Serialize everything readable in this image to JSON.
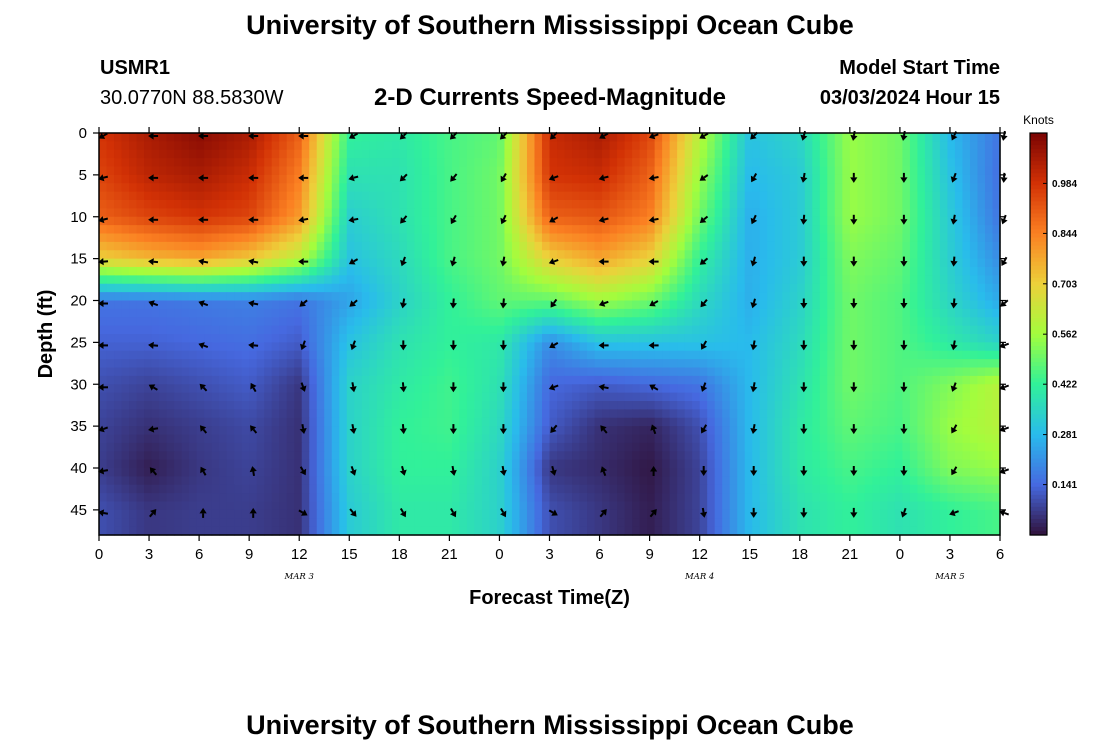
{
  "page": {
    "title": "University of Southern Mississippi Ocean Cube",
    "footer_title": "University of Southern Mississippi Ocean Cube",
    "station_id": "USMR1",
    "station_coords": "30.0770N  88.5830W",
    "plot_title": "2-D Currents Speed-Magnitude",
    "model_start_label": "Model Start Time",
    "model_start_value": "03/03/2024 Hour 15"
  },
  "chart_data": {
    "type": "heatmap",
    "title": "2-D Currents Speed-Magnitude",
    "xlabel": "Forecast Time(Z)",
    "ylabel": "Depth (ft)",
    "x_range_hours": [
      0,
      54
    ],
    "x_tick_labels": [
      "0",
      "3",
      "6",
      "9",
      "12",
      "15",
      "18",
      "21",
      "0",
      "3",
      "6",
      "9",
      "12",
      "15",
      "18",
      "21",
      "0",
      "3",
      "6"
    ],
    "date_labels": [
      {
        "label": "MAR 3",
        "hour": 12
      },
      {
        "label": "MAR 4",
        "hour": 36
      },
      {
        "label": "MAR 5",
        "hour": 51
      }
    ],
    "y_range_ft": [
      0,
      48
    ],
    "y_reversed": true,
    "y_ticks": [
      0,
      5,
      10,
      15,
      20,
      25,
      30,
      35,
      40,
      45
    ],
    "colorbar": {
      "title": "Knots",
      "ticks": [
        0.141,
        0.281,
        0.422,
        0.562,
        0.703,
        0.844,
        0.984
      ],
      "range": [
        0,
        1.125
      ],
      "colors": [
        "#30123b",
        "#4669e0",
        "#29bbec",
        "#31f199",
        "#a3fd3d",
        "#edd03a",
        "#fb8022",
        "#d23105",
        "#7a0403"
      ]
    },
    "column_hours": [
      0,
      3,
      6,
      9,
      12,
      15,
      18,
      21,
      24,
      27,
      30,
      33,
      36,
      39,
      42,
      45,
      48,
      51,
      54
    ],
    "row_depths_ft": [
      0,
      5,
      10,
      15,
      20,
      25,
      30,
      35,
      40,
      45
    ],
    "speed_knots": [
      [
        0.98,
        1.05,
        1.1,
        1.05,
        0.9,
        0.42,
        0.4,
        0.45,
        0.48,
        1.0,
        1.05,
        0.95,
        0.6,
        0.3,
        0.35,
        0.55,
        0.5,
        0.28,
        0.16
      ],
      [
        0.95,
        1.02,
        1.05,
        1.0,
        0.85,
        0.38,
        0.38,
        0.45,
        0.5,
        0.98,
        1.0,
        0.9,
        0.55,
        0.28,
        0.32,
        0.55,
        0.5,
        0.3,
        0.15
      ],
      [
        0.9,
        0.95,
        0.98,
        0.95,
        0.8,
        0.33,
        0.38,
        0.45,
        0.5,
        0.9,
        0.92,
        0.85,
        0.5,
        0.26,
        0.32,
        0.55,
        0.5,
        0.32,
        0.16
      ],
      [
        0.7,
        0.75,
        0.78,
        0.72,
        0.6,
        0.3,
        0.36,
        0.45,
        0.5,
        0.7,
        0.78,
        0.7,
        0.42,
        0.26,
        0.32,
        0.52,
        0.48,
        0.33,
        0.2
      ],
      [
        0.16,
        0.16,
        0.17,
        0.18,
        0.16,
        0.24,
        0.34,
        0.42,
        0.48,
        0.48,
        0.56,
        0.5,
        0.36,
        0.26,
        0.34,
        0.5,
        0.46,
        0.35,
        0.25
      ],
      [
        0.13,
        0.13,
        0.14,
        0.15,
        0.12,
        0.3,
        0.38,
        0.42,
        0.4,
        0.2,
        0.3,
        0.3,
        0.3,
        0.28,
        0.36,
        0.5,
        0.46,
        0.4,
        0.34
      ],
      [
        0.1,
        0.08,
        0.1,
        0.12,
        0.06,
        0.34,
        0.4,
        0.44,
        0.38,
        0.14,
        0.12,
        0.14,
        0.16,
        0.28,
        0.38,
        0.5,
        0.46,
        0.52,
        0.6
      ],
      [
        0.08,
        0.05,
        0.07,
        0.09,
        0.05,
        0.34,
        0.42,
        0.44,
        0.36,
        0.12,
        0.05,
        0.03,
        0.1,
        0.28,
        0.4,
        0.48,
        0.45,
        0.55,
        0.6
      ],
      [
        0.07,
        0.02,
        0.06,
        0.08,
        0.05,
        0.34,
        0.42,
        0.42,
        0.34,
        0.06,
        0.04,
        0.01,
        0.08,
        0.28,
        0.4,
        0.45,
        0.42,
        0.52,
        0.55
      ],
      [
        0.1,
        0.06,
        0.07,
        0.07,
        0.05,
        0.32,
        0.4,
        0.4,
        0.34,
        0.1,
        0.06,
        0.02,
        0.08,
        0.28,
        0.38,
        0.42,
        0.38,
        0.42,
        0.45
      ]
    ],
    "direction_deg": [
      [
        240,
        270,
        270,
        270,
        270,
        240,
        225,
        225,
        225,
        225,
        240,
        250,
        240,
        225,
        195,
        190,
        190,
        205,
        190
      ],
      [
        255,
        270,
        270,
        270,
        270,
        255,
        225,
        220,
        210,
        250,
        255,
        260,
        235,
        210,
        190,
        180,
        180,
        200,
        185
      ],
      [
        255,
        270,
        270,
        270,
        260,
        260,
        220,
        210,
        205,
        240,
        255,
        260,
        230,
        205,
        185,
        180,
        180,
        190,
        200
      ],
      [
        265,
        275,
        280,
        280,
        270,
        240,
        200,
        195,
        190,
        250,
        270,
        270,
        230,
        195,
        180,
        180,
        180,
        185,
        210
      ],
      [
        270,
        290,
        290,
        280,
        230,
        230,
        190,
        185,
        185,
        215,
        250,
        240,
        220,
        195,
        180,
        180,
        180,
        185,
        230
      ],
      [
        270,
        275,
        290,
        275,
        200,
        200,
        180,
        180,
        180,
        240,
        270,
        270,
        210,
        190,
        180,
        180,
        180,
        190,
        250
      ],
      [
        270,
        300,
        315,
        330,
        160,
        170,
        175,
        180,
        180,
        250,
        280,
        300,
        200,
        190,
        180,
        180,
        180,
        200,
        250
      ],
      [
        250,
        260,
        320,
        320,
        170,
        170,
        175,
        180,
        180,
        220,
        320,
        340,
        210,
        190,
        180,
        180,
        180,
        210,
        250
      ],
      [
        260,
        320,
        330,
        350,
        150,
        160,
        165,
        170,
        170,
        165,
        340,
        0,
        180,
        180,
        180,
        180,
        180,
        210,
        250
      ],
      [
        280,
        40,
        0,
        0,
        120,
        140,
        150,
        150,
        150,
        120,
        40,
        40,
        170,
        180,
        180,
        180,
        200,
        250,
        290
      ]
    ]
  }
}
